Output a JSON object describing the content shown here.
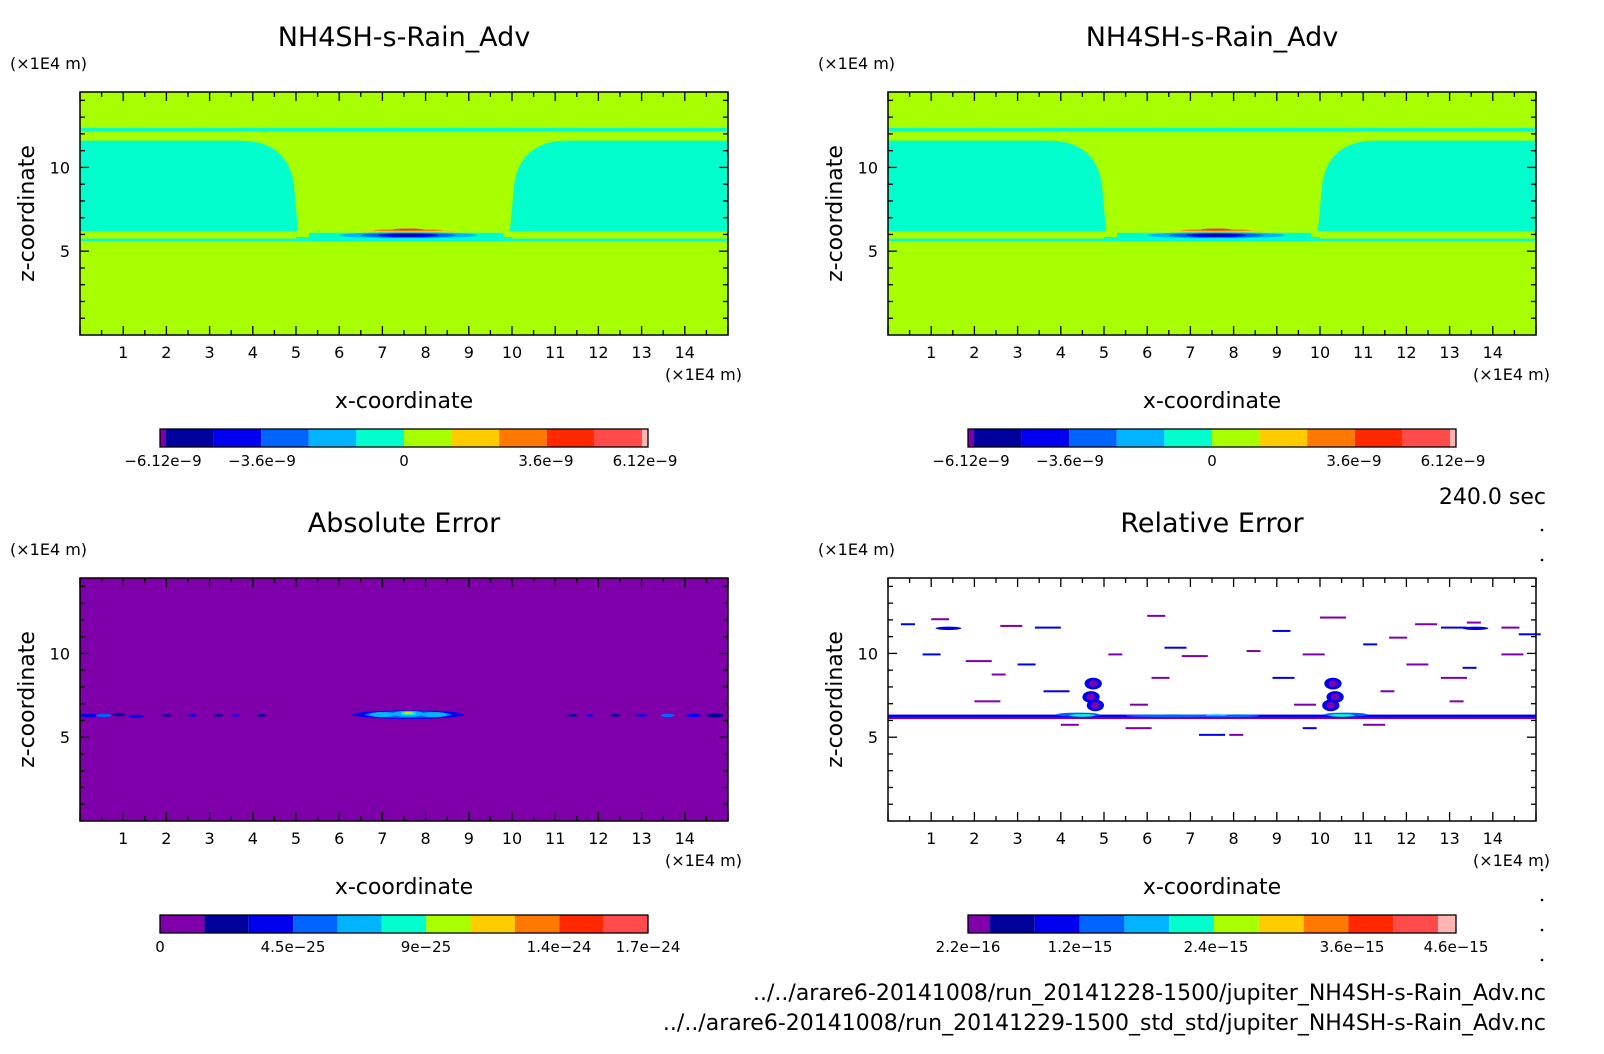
{
  "figure": {
    "time_label": "240.0 sec",
    "file_lines": [
      "../../arare6-20141008/run_20141228-1500/jupiter_NH4SH-s-Rain_Adv.nc",
      "../../arare6-20141008/run_20141229-1500_std_std/jupiter_NH4SH-s-Rain_Adv.nc"
    ]
  },
  "chart_data": [
    {
      "type": "heatmap",
      "title": "NH4SH-s-Rain_Adv",
      "xlabel": "x-coordinate",
      "ylabel": "z-coordinate",
      "xunit": "(×1E4 m)",
      "yunit": "(×1E4 m)",
      "xlim": [
        0,
        15
      ],
      "ylim": [
        0,
        14.5
      ],
      "xticks": [
        "1",
        "2",
        "3",
        "4",
        "5",
        "6",
        "7",
        "8",
        "9",
        "10",
        "11",
        "12",
        "13",
        "14"
      ],
      "yticks": [
        "5",
        "10"
      ],
      "field": "nh4sh",
      "colorbar": {
        "colors": [
          "#7f00aa",
          "#00009c",
          "#0000f0",
          "#0064ff",
          "#00b4ff",
          "#00ffcc",
          "#a8ff00",
          "#ffcc00",
          "#ff7800",
          "#ff2800",
          "#ff4b4b",
          "#ffb4b4"
        ],
        "labels": [
          "−6.12e−9",
          "−3.6e−9",
          "0",
          "3.6e−9",
          "6.12e−9"
        ]
      }
    },
    {
      "type": "heatmap",
      "title": "NH4SH-s-Rain_Adv",
      "xlabel": "x-coordinate",
      "ylabel": "z-coordinate",
      "xunit": "(×1E4 m)",
      "yunit": "(×1E4 m)",
      "xlim": [
        0,
        15
      ],
      "ylim": [
        0,
        14.5
      ],
      "xticks": [
        "1",
        "2",
        "3",
        "4",
        "5",
        "6",
        "7",
        "8",
        "9",
        "10",
        "11",
        "12",
        "13",
        "14"
      ],
      "yticks": [
        "5",
        "10"
      ],
      "field": "nh4sh",
      "colorbar": {
        "colors": [
          "#7f00aa",
          "#00009c",
          "#0000f0",
          "#0064ff",
          "#00b4ff",
          "#00ffcc",
          "#a8ff00",
          "#ffcc00",
          "#ff7800",
          "#ff2800",
          "#ff4b4b",
          "#ffb4b4"
        ],
        "labels": [
          "−6.12e−9",
          "−3.6e−9",
          "0",
          "3.6e−9",
          "6.12e−9"
        ]
      }
    },
    {
      "type": "heatmap",
      "title": "Absolute Error",
      "xlabel": "x-coordinate",
      "ylabel": "z-coordinate",
      "xunit": "(×1E4 m)",
      "yunit": "(×1E4 m)",
      "xlim": [
        0,
        15
      ],
      "ylim": [
        0,
        14.5
      ],
      "xticks": [
        "1",
        "2",
        "3",
        "4",
        "5",
        "6",
        "7",
        "8",
        "9",
        "10",
        "11",
        "12",
        "13",
        "14"
      ],
      "yticks": [
        "5",
        "10"
      ],
      "field": "abserr",
      "colorbar": {
        "colors": [
          "#7f00aa",
          "#00009c",
          "#0000f0",
          "#0064ff",
          "#00b4ff",
          "#00ffcc",
          "#a8ff00",
          "#ffcc00",
          "#ff7800",
          "#ff2800",
          "#ff4b4b"
        ],
        "labels": [
          "0",
          "4.5e−25",
          "9e−25",
          "1.4e−24",
          "1.7e−24"
        ]
      }
    },
    {
      "type": "heatmap",
      "title": "Relative Error",
      "xlabel": "x-coordinate",
      "ylabel": "z-coordinate",
      "xunit": "(×1E4 m)",
      "yunit": "(×1E4 m)",
      "xlim": [
        0,
        15
      ],
      "ylim": [
        0,
        14.5
      ],
      "xticks": [
        "1",
        "2",
        "3",
        "4",
        "5",
        "6",
        "7",
        "8",
        "9",
        "10",
        "11",
        "12",
        "13",
        "14"
      ],
      "yticks": [
        "5",
        "10"
      ],
      "field": "relerr",
      "colorbar": {
        "colors": [
          "#7f00aa",
          "#00009c",
          "#0000f0",
          "#0064ff",
          "#00b4ff",
          "#00ffcc",
          "#a8ff00",
          "#ffcc00",
          "#ff7800",
          "#ff2800",
          "#ff4b4b",
          "#ffb4b4"
        ],
        "labels": [
          "2.2e−16",
          "1.2e−15",
          "2.4e−15",
          "3.6e−15",
          "4.6e−15"
        ]
      }
    }
  ]
}
